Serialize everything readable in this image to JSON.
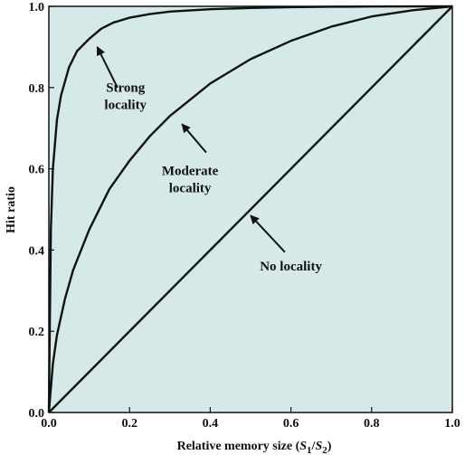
{
  "chart_data": {
    "type": "line",
    "xlabel": "Relative memory size (S1/S2)",
    "xlabel_parts": {
      "prefix": "Relative memory size (",
      "s": "S",
      "sub1": "1",
      "slash": "/",
      "s2": "S",
      "sub2": "2",
      "suffix": ")"
    },
    "ylabel": "Hit ratio",
    "xlim": [
      0,
      1
    ],
    "ylim": [
      0,
      1
    ],
    "x_ticks": [
      "0.0",
      "0.2",
      "0.4",
      "0.6",
      "0.8",
      "1.0"
    ],
    "y_ticks": [
      "0.0",
      "0.2",
      "0.4",
      "0.6",
      "0.8",
      "1.0"
    ],
    "grid": false,
    "background_color": "#d6e9e9",
    "line_color": "#111111",
    "series": [
      {
        "name": "Strong locality",
        "x": [
          0,
          0.005,
          0.01,
          0.02,
          0.03,
          0.05,
          0.07,
          0.1,
          0.13,
          0.16,
          0.2,
          0.25,
          0.3,
          0.4,
          0.5,
          0.6,
          0.7,
          0.8,
          0.9,
          1.0
        ],
        "y": [
          0,
          0.45,
          0.6,
          0.72,
          0.78,
          0.85,
          0.89,
          0.92,
          0.945,
          0.96,
          0.972,
          0.981,
          0.987,
          0.993,
          0.996,
          0.998,
          0.999,
          0.9995,
          0.9998,
          1.0
        ]
      },
      {
        "name": "Moderate locality",
        "x": [
          0,
          0.01,
          0.02,
          0.04,
          0.06,
          0.1,
          0.15,
          0.2,
          0.25,
          0.3,
          0.35,
          0.4,
          0.5,
          0.6,
          0.7,
          0.8,
          0.9,
          1.0
        ],
        "y": [
          0,
          0.12,
          0.19,
          0.28,
          0.35,
          0.45,
          0.55,
          0.62,
          0.68,
          0.73,
          0.77,
          0.81,
          0.87,
          0.915,
          0.95,
          0.975,
          0.99,
          1.0
        ]
      },
      {
        "name": "No locality",
        "x": [
          0,
          1
        ],
        "y": [
          0,
          1
        ]
      }
    ],
    "annotations": [
      {
        "lines": [
          "Strong",
          "locality"
        ],
        "text_x": 0.19,
        "text_y": 0.79,
        "arrow_from": [
          0.17,
          0.8
        ],
        "arrow_to": [
          0.12,
          0.9
        ]
      },
      {
        "lines": [
          "Moderate",
          "locality"
        ],
        "text_x": 0.35,
        "text_y": 0.585,
        "arrow_from": [
          0.39,
          0.64
        ],
        "arrow_to": [
          0.33,
          0.71
        ]
      },
      {
        "lines": [
          "No locality"
        ],
        "text_x": 0.6,
        "text_y": 0.35,
        "arrow_from": [
          0.585,
          0.395
        ],
        "arrow_to": [
          0.5,
          0.485
        ]
      }
    ]
  }
}
